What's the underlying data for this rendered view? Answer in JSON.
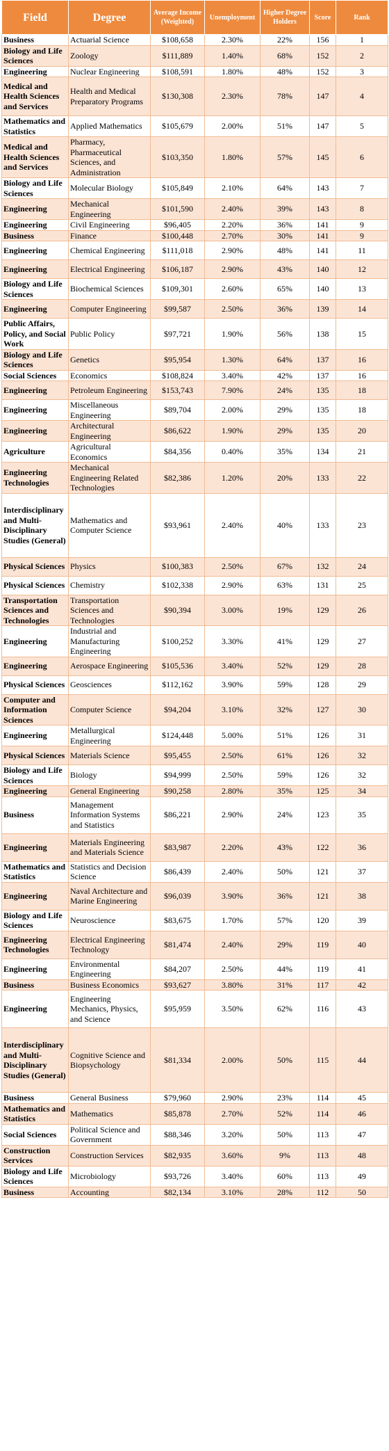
{
  "headers": [
    "Field",
    "Degree",
    "Average Income (Weighted)",
    "Unemployment",
    "Higher Degree Holders",
    "Score",
    "Rank"
  ],
  "header_display": {
    "score": "Scor\ne"
  },
  "colors": {
    "header_bg": "#ee8a3e",
    "header_text": "#ffffff",
    "row_alt": "#fce4d5",
    "row_plain": "#ffffff",
    "grid": "#f0bb93"
  },
  "rows": [
    {
      "field": "Business",
      "degree": "Actuarial Science",
      "income": "$108,658",
      "unemployment": "2.30%",
      "higher": "22%",
      "score": "156",
      "rank": "1"
    },
    {
      "field": "Biology and Life Sciences",
      "degree": "Zoology",
      "income": "$111,889",
      "unemployment": "1.40%",
      "higher": "68%",
      "score": "152",
      "rank": "2"
    },
    {
      "field": "Engineering",
      "degree": "Nuclear Engineering",
      "income": "$108,591",
      "unemployment": "1.80%",
      "higher": "48%",
      "score": "152",
      "rank": "3"
    },
    {
      "field": "Medical and Health Sciences and Services",
      "degree": "Health and Medical Preparatory Programs",
      "income": "$130,308",
      "unemployment": "2.30%",
      "higher": "78%",
      "score": "147",
      "rank": "4"
    },
    {
      "field": "Mathematics and Statistics",
      "degree": "Applied Mathematics",
      "income": "$105,679",
      "unemployment": "2.00%",
      "higher": "51%",
      "score": "147",
      "rank": "5"
    },
    {
      "field": "Medical and Health Sciences and Services",
      "degree": "Pharmacy, Pharmaceutical Sciences, and Administration",
      "income": "$103,350",
      "unemployment": "1.80%",
      "higher": "57%",
      "score": "145",
      "rank": "6"
    },
    {
      "field": "Biology and Life Sciences",
      "degree": "Molecular Biology",
      "income": "$105,849",
      "unemployment": "2.10%",
      "higher": "64%",
      "score": "143",
      "rank": "7"
    },
    {
      "field": "Engineering",
      "degree": "Mechanical Engineering",
      "income": "$101,590",
      "unemployment": "2.40%",
      "higher": "39%",
      "score": "143",
      "rank": "8"
    },
    {
      "field": "Engineering",
      "degree": "Civil Engineering",
      "income": "$96,405",
      "unemployment": "2.20%",
      "higher": "36%",
      "score": "141",
      "rank": "9"
    },
    {
      "field": "Business",
      "degree": "Finance",
      "income": "$100,448",
      "unemployment": "2.70%",
      "higher": "30%",
      "score": "141",
      "rank": "9"
    },
    {
      "field": "Engineering",
      "degree": "Chemical Engineering",
      "income": "$111,018",
      "unemployment": "2.90%",
      "higher": "48%",
      "score": "141",
      "rank": "11"
    },
    {
      "field": "Engineering",
      "degree": "Electrical Engineering",
      "income": "$106,187",
      "unemployment": "2.90%",
      "higher": "43%",
      "score": "140",
      "rank": "12"
    },
    {
      "field": "Biology and Life Sciences",
      "degree": "Biochemical Sciences",
      "income": "$109,301",
      "unemployment": "2.60%",
      "higher": "65%",
      "score": "140",
      "rank": "13"
    },
    {
      "field": "Engineering",
      "degree": "Computer Engineering",
      "income": "$99,587",
      "unemployment": "2.50%",
      "higher": "36%",
      "score": "139",
      "rank": "14"
    },
    {
      "field": "Public Affairs, Policy, and Social Work",
      "degree": "Public Policy",
      "income": "$97,721",
      "unemployment": "1.90%",
      "higher": "56%",
      "score": "138",
      "rank": "15"
    },
    {
      "field": "Biology and Life Sciences",
      "degree": "Genetics",
      "income": "$95,954",
      "unemployment": "1.30%",
      "higher": "64%",
      "score": "137",
      "rank": "16"
    },
    {
      "field": "Social Sciences",
      "degree": "Economics",
      "income": "$108,824",
      "unemployment": "3.40%",
      "higher": "42%",
      "score": "137",
      "rank": "16"
    },
    {
      "field": "Engineering",
      "degree": "Petroleum Engineering",
      "income": "$153,743",
      "unemployment": "7.90%",
      "higher": "24%",
      "score": "135",
      "rank": "18"
    },
    {
      "field": "Engineering",
      "degree": "Miscellaneous Engineering",
      "income": "$89,704",
      "unemployment": "2.00%",
      "higher": "29%",
      "score": "135",
      "rank": "18"
    },
    {
      "field": "Engineering",
      "degree": "Architectural Engineering",
      "income": "$86,622",
      "unemployment": "1.90%",
      "higher": "29%",
      "score": "135",
      "rank": "20"
    },
    {
      "field": "Agriculture",
      "degree": "Agricultural Economics",
      "income": "$84,356",
      "unemployment": "0.40%",
      "higher": "35%",
      "score": "134",
      "rank": "21"
    },
    {
      "field": "Engineering Technologies",
      "degree": "Mechanical Engineering Related Technologies",
      "income": "$82,386",
      "unemployment": "1.20%",
      "higher": "20%",
      "score": "133",
      "rank": "22"
    },
    {
      "field": "Interdisciplinary and Multi-Disciplinary Studies (General)",
      "degree": "Mathematics and Computer Science",
      "income": "$93,961",
      "unemployment": "2.40%",
      "higher": "40%",
      "score": "133",
      "rank": "23"
    },
    {
      "field": "Physical Sciences",
      "degree": "Physics",
      "income": "$100,383",
      "unemployment": "2.50%",
      "higher": "67%",
      "score": "132",
      "rank": "24"
    },
    {
      "field": "Physical Sciences",
      "degree": "Chemistry",
      "income": "$102,338",
      "unemployment": "2.90%",
      "higher": "63%",
      "score": "131",
      "rank": "25"
    },
    {
      "field": "Transportation Sciences and Technologies",
      "degree": "Transportation Sciences and Technologies",
      "income": "$90,394",
      "unemployment": "3.00%",
      "higher": "19%",
      "score": "129",
      "rank": "26"
    },
    {
      "field": "Engineering",
      "degree": "Industrial and Manufacturing Engineering",
      "income": "$100,252",
      "unemployment": "3.30%",
      "higher": "41%",
      "score": "129",
      "rank": "27"
    },
    {
      "field": "Engineering",
      "degree": "Aerospace Engineering",
      "income": "$105,536",
      "unemployment": "3.40%",
      "higher": "52%",
      "score": "129",
      "rank": "28"
    },
    {
      "field": "Physical Sciences",
      "degree": "Geosciences",
      "income": "$112,162",
      "unemployment": "3.90%",
      "higher": "59%",
      "score": "128",
      "rank": "29"
    },
    {
      "field": "Computer and Information Sciences",
      "degree": "Computer Science",
      "income": "$94,204",
      "unemployment": "3.10%",
      "higher": "32%",
      "score": "127",
      "rank": "30"
    },
    {
      "field": "Engineering",
      "degree": "Metallurgical Engineering",
      "income": "$124,448",
      "unemployment": "5.00%",
      "higher": "51%",
      "score": "126",
      "rank": "31"
    },
    {
      "field": "Physical Sciences",
      "degree": "Materials Science",
      "income": "$95,455",
      "unemployment": "2.50%",
      "higher": "61%",
      "score": "126",
      "rank": "32"
    },
    {
      "field": "Biology and Life Sciences",
      "degree": "Biology",
      "income": "$94,999",
      "unemployment": "2.50%",
      "higher": "59%",
      "score": "126",
      "rank": "32"
    },
    {
      "field": "Engineering",
      "degree": "General Engineering",
      "income": "$90,258",
      "unemployment": "2.80%",
      "higher": "35%",
      "score": "125",
      "rank": "34"
    },
    {
      "field": "Business",
      "degree": "Management Information Systems and Statistics",
      "income": "$86,221",
      "unemployment": "2.90%",
      "higher": "24%",
      "score": "123",
      "rank": "35"
    },
    {
      "field": "Engineering",
      "degree": "Materials Engineering and Materials Science",
      "income": "$83,987",
      "unemployment": "2.20%",
      "higher": "43%",
      "score": "122",
      "rank": "36"
    },
    {
      "field": "Mathematics and Statistics",
      "degree": "Statistics and Decision Science",
      "income": "$86,439",
      "unemployment": "2.40%",
      "higher": "50%",
      "score": "121",
      "rank": "37"
    },
    {
      "field": "Engineering",
      "degree": "Naval Architecture and Marine Engineering",
      "income": "$96,039",
      "unemployment": "3.90%",
      "higher": "36%",
      "score": "121",
      "rank": "38"
    },
    {
      "field": "Biology and Life Sciences",
      "degree": "Neuroscience",
      "income": "$83,675",
      "unemployment": "1.70%",
      "higher": "57%",
      "score": "120",
      "rank": "39"
    },
    {
      "field": "Engineering Technologies",
      "degree": "Electrical Engineering Technology",
      "income": "$81,474",
      "unemployment": "2.40%",
      "higher": "29%",
      "score": "119",
      "rank": "40"
    },
    {
      "field": "Engineering",
      "degree": "Environmental Engineering",
      "income": "$84,207",
      "unemployment": "2.50%",
      "higher": "44%",
      "score": "119",
      "rank": "41"
    },
    {
      "field": "Business",
      "degree": "Business Economics",
      "income": "$93,627",
      "unemployment": "3.80%",
      "higher": "31%",
      "score": "117",
      "rank": "42"
    },
    {
      "field": "Engineering",
      "degree": "Engineering Mechanics, Physics, and Science",
      "income": "$95,959",
      "unemployment": "3.50%",
      "higher": "62%",
      "score": "116",
      "rank": "43"
    },
    {
      "field": "Interdisciplinary and Multi-Disciplinary Studies (General)",
      "degree": "Cognitive Science and Biopsychology",
      "income": "$81,334",
      "unemployment": "2.00%",
      "higher": "50%",
      "score": "115",
      "rank": "44"
    },
    {
      "field": "Business",
      "degree": "General Business",
      "income": "$79,960",
      "unemployment": "2.90%",
      "higher": "23%",
      "score": "114",
      "rank": "45"
    },
    {
      "field": "Mathematics and Statistics",
      "degree": "Mathematics",
      "income": "$85,878",
      "unemployment": "2.70%",
      "higher": "52%",
      "score": "114",
      "rank": "46"
    },
    {
      "field": "Social Sciences",
      "degree": "Political Science and Government",
      "income": "$88,346",
      "unemployment": "3.20%",
      "higher": "50%",
      "score": "113",
      "rank": "47"
    },
    {
      "field": "Construction Services",
      "degree": "Construction Services",
      "income": "$82,935",
      "unemployment": "3.60%",
      "higher": "9%",
      "score": "113",
      "rank": "48"
    },
    {
      "field": "Biology and Life Sciences",
      "degree": "Microbiology",
      "income": "$93,726",
      "unemployment": "3.40%",
      "higher": "60%",
      "score": "113",
      "rank": "49"
    },
    {
      "field": "Business",
      "degree": "Accounting",
      "income": "$82,134",
      "unemployment": "3.10%",
      "higher": "28%",
      "score": "112",
      "rank": "50"
    }
  ]
}
